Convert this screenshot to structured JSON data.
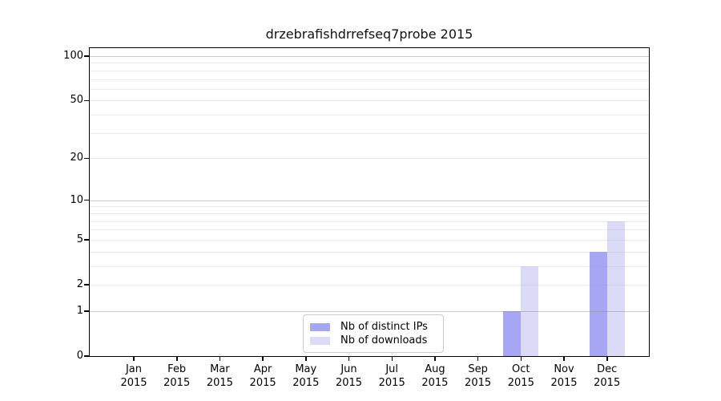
{
  "chart_data": {
    "type": "bar",
    "title": "drzebrafishdrrefseq7probe 2015",
    "x_months": [
      "Jan",
      "Feb",
      "Mar",
      "Apr",
      "May",
      "Jun",
      "Jul",
      "Aug",
      "Sep",
      "Oct",
      "Nov",
      "Dec"
    ],
    "x_year": "2015",
    "series": [
      {
        "name": "Nb of distinct IPs",
        "color": "#a6a6f4",
        "values": [
          0,
          0,
          0,
          0,
          0,
          0,
          0,
          0,
          0,
          1,
          0,
          4
        ]
      },
      {
        "name": "Nb of downloads",
        "color": "#dbdbf8",
        "values": [
          0,
          0,
          0,
          0,
          0,
          0,
          0,
          0,
          0,
          3,
          0,
          7
        ]
      }
    ],
    "y_scale": "log1p",
    "y_ticks": [
      0,
      1,
      2,
      5,
      10,
      20,
      50,
      100
    ],
    "ylim": [
      0,
      110
    ],
    "grid": {
      "major_values": [
        1,
        10,
        100
      ],
      "minor_values": [
        2,
        3,
        4,
        5,
        6,
        7,
        8,
        9,
        20,
        30,
        40,
        50,
        60,
        70,
        80,
        90
      ],
      "major_color": "#c6c6c6",
      "minor_color": "#e7e7e7"
    },
    "legend": {
      "position": "lower center"
    },
    "axis_color": "#000000",
    "background": "#ffffff"
  }
}
